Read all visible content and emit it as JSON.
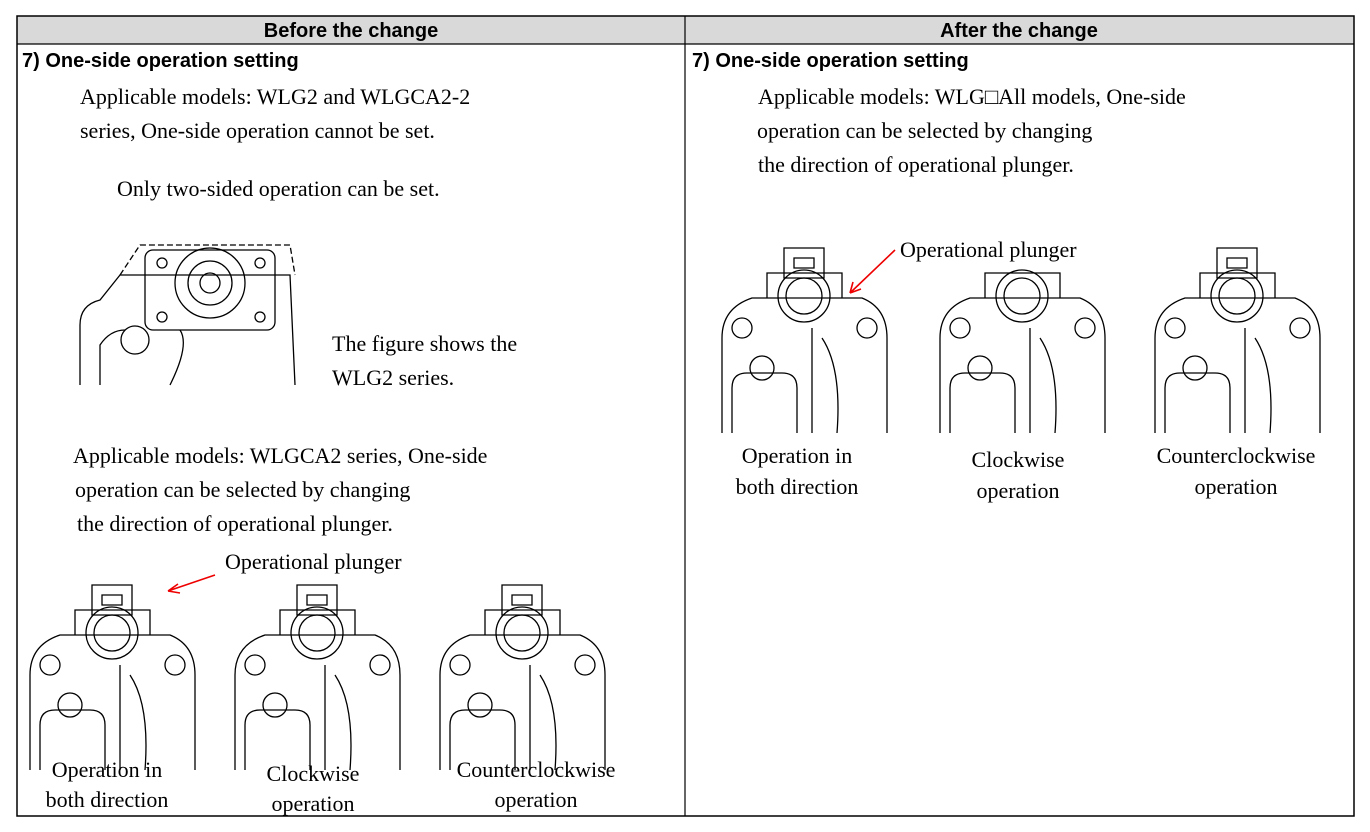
{
  "header": {
    "before": "Before the change",
    "after": "After the change"
  },
  "before": {
    "heading": "7) One-side operation setting",
    "paragraph1": [
      "Applicable models: WLG2 and WLGCA2-2",
      "series, One-side operation cannot be set."
    ],
    "note": "Only two-sided operation can be set.",
    "figure_caption": [
      "The figure shows the",
      "WLG2 series."
    ],
    "paragraph2": [
      "Applicable models: WLGCA2 series, One-side",
      "operation can be selected by changing",
      "the direction of operational plunger."
    ],
    "callout": "Operational plunger",
    "captions": [
      [
        "Operation in",
        "both direction"
      ],
      [
        "Clockwise",
        "operation"
      ],
      [
        "Counterclockwise",
        "operation"
      ]
    ]
  },
  "after": {
    "heading": "7) One-side operation setting",
    "paragraph1": [
      "Applicable models: WLG□All models, One-side",
      "operation can be selected by changing",
      "the direction of operational plunger."
    ],
    "callout": "Operational plunger",
    "captions": [
      [
        "Operation in",
        "both direction"
      ],
      [
        "Clockwise",
        "operation"
      ],
      [
        "Counterclockwise",
        "operation"
      ]
    ]
  }
}
